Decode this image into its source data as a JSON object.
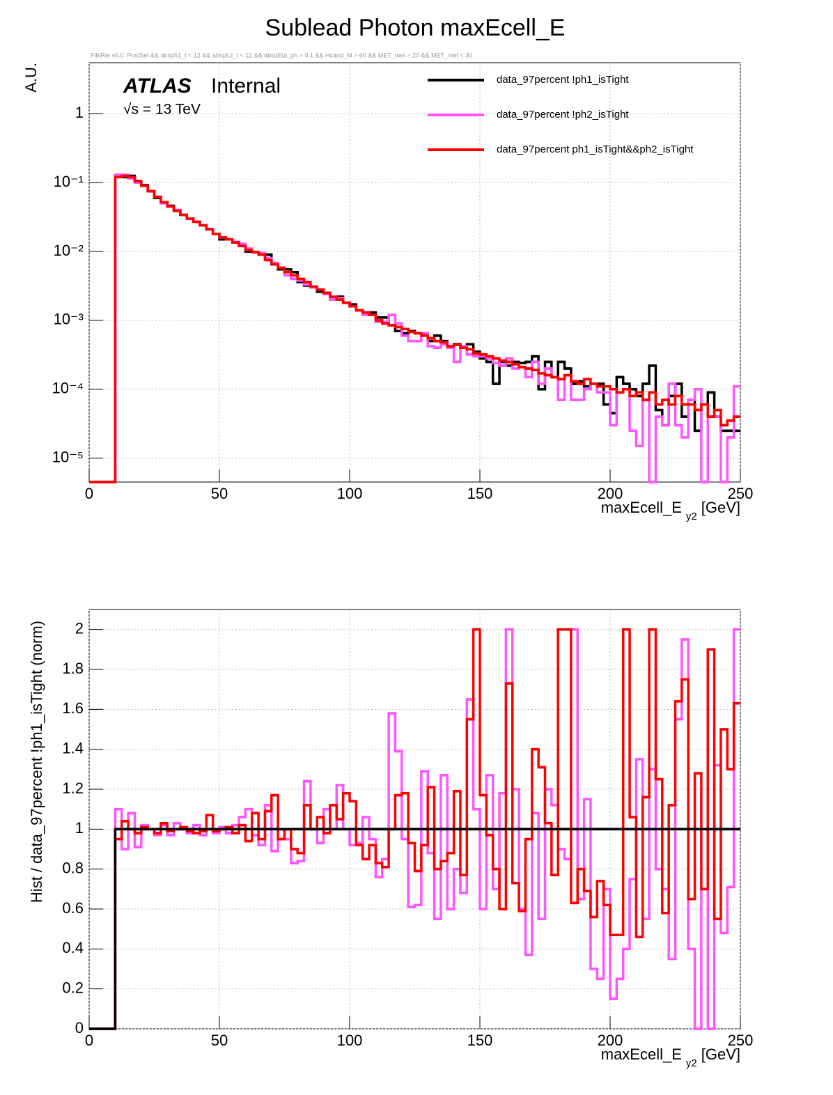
{
  "chart_data": [
    {
      "type": "histogram",
      "title": "Sublead Photon maxEcell_E",
      "subtitle": "FileRel v6.0. PostSel &&  absph1_t < 12 && absph2_t < 12 && absdEta_ph > 0.1 && Hcand_M > 60 && MET_met > 20 && MET_met < 30",
      "annotations": {
        "atlas": "ATLAS",
        "internal": "Internal",
        "energy": "√s = 13 TeV"
      },
      "ylabel": "A.U.",
      "xlabel": {
        "main": "maxEcell_E",
        "sub": "y2",
        "unit": "[GeV]"
      },
      "log_y": true,
      "grid": true,
      "legend": "upper right",
      "xlim": [
        0,
        250
      ],
      "xticks": [
        0,
        50,
        100,
        150,
        200,
        250
      ],
      "ylim": [
        4.5e-06,
        5.5
      ],
      "yticks": [
        {
          "value": 1e-05,
          "label": "10⁻⁵"
        },
        {
          "value": 0.0001,
          "label": "10⁻⁴"
        },
        {
          "value": 0.001,
          "label": "10⁻³"
        },
        {
          "value": 0.01,
          "label": "10⁻²"
        },
        {
          "value": 0.1,
          "label": "10⁻¹"
        },
        1
      ],
      "bins": [
        0,
        2.5,
        5,
        7.5,
        10,
        12.5,
        15,
        17.5,
        20,
        22.5,
        25,
        27.5,
        30,
        32.5,
        35,
        37.5,
        40,
        42.5,
        45,
        47.5,
        50,
        52.5,
        55,
        57.5,
        60,
        62.5,
        65,
        67.5,
        70,
        72.5,
        75,
        77.5,
        80,
        82.5,
        85,
        87.5,
        90,
        92.5,
        95,
        97.5,
        100,
        102.5,
        105,
        107.5,
        110,
        112.5,
        115,
        117.5,
        120,
        122.5,
        125,
        127.5,
        130,
        132.5,
        135,
        137.5,
        140,
        142.5,
        145,
        147.5,
        150,
        152.5,
        155,
        157.5,
        160,
        162.5,
        165,
        167.5,
        170,
        172.5,
        175,
        177.5,
        180,
        182.5,
        185,
        187.5,
        190,
        192.5,
        195,
        197.5,
        200,
        202.5,
        205,
        207.5,
        210,
        212.5,
        215,
        217.5,
        220,
        222.5,
        225,
        227.5,
        230,
        232.5,
        235,
        237.5,
        240,
        242.5,
        245,
        247.5,
        250
      ],
      "series": [
        {
          "name": "data_97percent  !ph1_isTight",
          "color": "#000000",
          "values": [
            0,
            0,
            0,
            0,
            0.125,
            0.12,
            0.125,
            0.105,
            0.092,
            0.075,
            0.06,
            0.052,
            0.046,
            0.039,
            0.034,
            0.03,
            0.027,
            0.024,
            0.021,
            0.018,
            0.015,
            0.015,
            0.0135,
            0.012,
            0.01,
            0.0098,
            0.0095,
            0.009,
            0.0065,
            0.0055,
            0.0055,
            0.005,
            0.0036,
            0.0032,
            0.0031,
            0.0026,
            0.0025,
            0.002,
            0.0022,
            0.0018,
            0.0017,
            0.0014,
            0.0013,
            0.0013,
            0.0011,
            0.0011,
            0.00085,
            0.0007,
            0.00065,
            0.0007,
            0.00065,
            0.00065,
            0.0005,
            0.0006,
            0.0005,
            0.00042,
            0.00045,
            0.00042,
            0.00045,
            0.00035,
            0.00028,
            0.00025,
            0.00012,
            0.00025,
            0.00022,
            0.00025,
            0.00024,
            0.00025,
            0.0003,
            0.0001,
            0.00025,
            0.00015,
            0.00025,
            0.0002,
            0.00012,
            0.00013,
            0.00011,
            0.00012,
            0.00012,
            6e-05,
            4.5e-05,
            0.00015,
            0.00012,
            0.0001,
            8e-05,
            0.00012,
            0.00022,
            5e-05,
            3e-05,
            8e-05,
            0.00012,
            4e-05,
            7e-05,
            2.5e-05,
            6e-05,
            9e-05,
            4e-05,
            2.5e-05,
            2.5e-05,
            2.5e-05
          ]
        },
        {
          "name": "data_97percent  !ph2_isTight",
          "color": "#ff55ff",
          "values": [
            0,
            0,
            0,
            0,
            0.13,
            0.13,
            0.115,
            0.1,
            0.09,
            0.075,
            0.062,
            0.05,
            0.045,
            0.04,
            0.034,
            0.03,
            0.027,
            0.024,
            0.021,
            0.018,
            0.016,
            0.015,
            0.0138,
            0.013,
            0.011,
            0.0098,
            0.0095,
            0.008,
            0.0068,
            0.0058,
            0.0045,
            0.004,
            0.0038,
            0.0033,
            0.003,
            0.0028,
            0.0024,
            0.002,
            0.0021,
            0.0018,
            0.0016,
            0.0014,
            0.0012,
            0.0012,
            0.00095,
            0.00095,
            0.0012,
            0.0009,
            0.0006,
            0.0005,
            0.0005,
            0.00065,
            0.00042,
            0.0004,
            0.00045,
            0.0004,
            0.00025,
            0.00042,
            0.00032,
            0.0003,
            0.0003,
            0.00028,
            0.00024,
            0.00022,
            0.00028,
            0.0002,
            0.00021,
            0.00015,
            0.00025,
            0.00012,
            0.0002,
            0.00015,
            7e-05,
            0.00016,
            7e-05,
            7e-05,
            0.0001,
            0.00012,
            9e-05,
            9e-05,
            3e-05,
            9e-05,
            0.0001,
            2.5e-05,
            1.5e-05,
            7e-05,
            0,
            4e-05,
            3e-05,
            0.00012,
            3e-05,
            2e-05,
            7e-05,
            0.0001,
            0,
            4e-05,
            4e-05,
            0,
            2e-05,
            0.00011
          ]
        },
        {
          "name": "data_97percent  ph1_isTight&&ph2_isTight",
          "color": "#ff0000",
          "values": [
            0,
            0,
            0,
            0,
            0.12,
            0.125,
            0.12,
            0.105,
            0.09,
            0.075,
            0.062,
            0.052,
            0.045,
            0.039,
            0.034,
            0.03,
            0.027,
            0.024,
            0.021,
            0.018,
            0.016,
            0.015,
            0.0135,
            0.012,
            0.0105,
            0.0098,
            0.009,
            0.0075,
            0.0065,
            0.0058,
            0.005,
            0.0045,
            0.004,
            0.0036,
            0.0031,
            0.0028,
            0.0025,
            0.0022,
            0.002,
            0.0018,
            0.0016,
            0.0014,
            0.0013,
            0.0012,
            0.001,
            0.0009,
            0.00085,
            0.0008,
            0.00075,
            0.00068,
            0.00065,
            0.0006,
            0.00055,
            0.0005,
            0.00048,
            0.00042,
            0.00044,
            0.0004,
            0.00038,
            0.00033,
            0.00032,
            0.0003,
            0.00028,
            0.00026,
            0.00025,
            0.00023,
            0.00021,
            0.0002,
            0.00019,
            0.00017,
            0.00016,
            0.00015,
            0.00014,
            0.00016,
            0.00013,
            0.00012,
            0.00014,
            0.00012,
            0.00011,
            0.00011,
            0.0001,
            9e-05,
            0.0001,
            8e-05,
            9e-05,
            7e-05,
            9e-05,
            6e-05,
            7e-05,
            6e-05,
            8e-05,
            6e-05,
            6e-05,
            5e-05,
            6e-05,
            4e-05,
            5e-05,
            3e-05,
            3.5e-05,
            4e-05
          ]
        }
      ]
    },
    {
      "type": "histogram",
      "ylabel": "Hist / data_97percent  !ph1_isTight (norm)",
      "xlabel": {
        "main": "maxEcell_E",
        "sub": "y2",
        "unit": "[GeV]"
      },
      "grid": true,
      "xlim": [
        0,
        250
      ],
      "xticks": [
        0,
        50,
        100,
        150,
        200,
        250
      ],
      "ylim": [
        0,
        2.1
      ],
      "yticks": [
        0,
        0.2,
        0.4,
        0.6,
        0.8,
        1,
        1.2,
        1.4,
        1.6,
        1.8,
        2
      ],
      "bins": [
        0,
        2.5,
        5,
        7.5,
        10,
        12.5,
        15,
        17.5,
        20,
        22.5,
        25,
        27.5,
        30,
        32.5,
        35,
        37.5,
        40,
        42.5,
        45,
        47.5,
        50,
        52.5,
        55,
        57.5,
        60,
        62.5,
        65,
        67.5,
        70,
        72.5,
        75,
        77.5,
        80,
        82.5,
        85,
        87.5,
        90,
        92.5,
        95,
        97.5,
        100,
        102.5,
        105,
        107.5,
        110,
        112.5,
        115,
        117.5,
        120,
        122.5,
        125,
        127.5,
        130,
        132.5,
        135,
        137.5,
        140,
        142.5,
        145,
        147.5,
        150,
        152.5,
        155,
        157.5,
        160,
        162.5,
        165,
        167.5,
        170,
        172.5,
        175,
        177.5,
        180,
        182.5,
        185,
        187.5,
        190,
        192.5,
        195,
        197.5,
        200,
        202.5,
        205,
        207.5,
        210,
        212.5,
        215,
        217.5,
        220,
        222.5,
        225,
        227.5,
        230,
        232.5,
        235,
        237.5,
        240,
        242.5,
        245,
        247.5,
        250
      ],
      "series": [
        {
          "color": "#ff55ff",
          "values": [
            0,
            0,
            0,
            0,
            1.1,
            0.9,
            1.08,
            0.91,
            1.02,
            1.0,
            0.97,
            1.02,
            0.97,
            1.03,
            1.0,
            0.98,
            1.02,
            0.97,
            1.0,
            0.98,
            1.01,
            0.98,
            1.02,
            1.06,
            1.1,
            0.97,
            0.92,
            1.12,
            0.89,
            1.0,
            0.95,
            0.83,
            0.84,
            1.24,
            1.0,
            0.93,
            1.1,
            1.0,
            1.22,
            1.0,
            0.92,
            0.93,
            1.06,
            0.95,
            0.76,
            0.85,
            1.58,
            1.39,
            0.95,
            0.61,
            0.62,
            1.29,
            0.88,
            0.55,
            1.27,
            0.6,
            0.8,
            0.68,
            1.65,
            1.1,
            0.6,
            1.27,
            0.7,
            1.18,
            2.0,
            1.2,
            0.6,
            0.37,
            1.08,
            0.55,
            1.2,
            1.12,
            0.9,
            0.85,
            2.0,
            0.65,
            1.15,
            0.3,
            0.25,
            0.7,
            0.15,
            0.25,
            0.4,
            0.75,
            1.35,
            0.55,
            1.3,
            0.8,
            0.7,
            0.35,
            1.55,
            1.95,
            0.4,
            0.0,
            0.7,
            0.0,
            1.32,
            0.48,
            0.71,
            2.0
          ]
        },
        {
          "color": "#ff0000",
          "values": [
            0,
            0,
            0,
            0,
            0.95,
            1.04,
            1.0,
            0.98,
            1.01,
            1.0,
            0.98,
            1.03,
            0.99,
            1.0,
            1.01,
            0.99,
            0.98,
            0.99,
            1.07,
            0.99,
            1.0,
            1.01,
            0.98,
            1.02,
            0.94,
            1.08,
            0.95,
            1.09,
            1.17,
            0.95,
            1.0,
            0.9,
            0.88,
            1.12,
            1.0,
            1.06,
            0.98,
            1.12,
            1.05,
            1.18,
            1.14,
            0.92,
            0.85,
            0.92,
            0.83,
            0.81,
            1.0,
            1.17,
            1.18,
            0.93,
            0.79,
            0.92,
            1.21,
            0.8,
            0.84,
            0.88,
            1.19,
            0.77,
            1.55,
            2.0,
            1.17,
            0.97,
            0.8,
            0.6,
            1.73,
            0.73,
            0.59,
            0.95,
            1.4,
            1.31,
            1.03,
            0.77,
            2.0,
            2.0,
            0.63,
            0.8,
            0.69,
            0.56,
            0.74,
            0.62,
            0.47,
            0.47,
            2.0,
            1.06,
            0.46,
            1.16,
            2.0,
            1.25,
            0.58,
            1.12,
            1.64,
            1.75,
            0.65,
            1.28,
            0.7,
            1.9,
            0.55,
            1.5,
            1.3,
            1.63
          ]
        },
        {
          "color": "#000000",
          "values": [
            0,
            0,
            0,
            0,
            1,
            1,
            1,
            1,
            1,
            1,
            1,
            1,
            1,
            1,
            1,
            1,
            1,
            1,
            1,
            1,
            1,
            1,
            1,
            1,
            1,
            1,
            1,
            1,
            1,
            1,
            1,
            1,
            1,
            1,
            1,
            1,
            1,
            1,
            1,
            1,
            1,
            1,
            1,
            1,
            1,
            1,
            1,
            1,
            1,
            1,
            1,
            1,
            1,
            1,
            1,
            1,
            1,
            1,
            1,
            1,
            1,
            1,
            1,
            1,
            1,
            1,
            1,
            1,
            1,
            1,
            1,
            1,
            1,
            1,
            1,
            1,
            1,
            1,
            1,
            1,
            1,
            1,
            1,
            1,
            1,
            1,
            1,
            1,
            1,
            1,
            1,
            1,
            1,
            1,
            1,
            1,
            1,
            1,
            1,
            1
          ]
        }
      ]
    }
  ]
}
